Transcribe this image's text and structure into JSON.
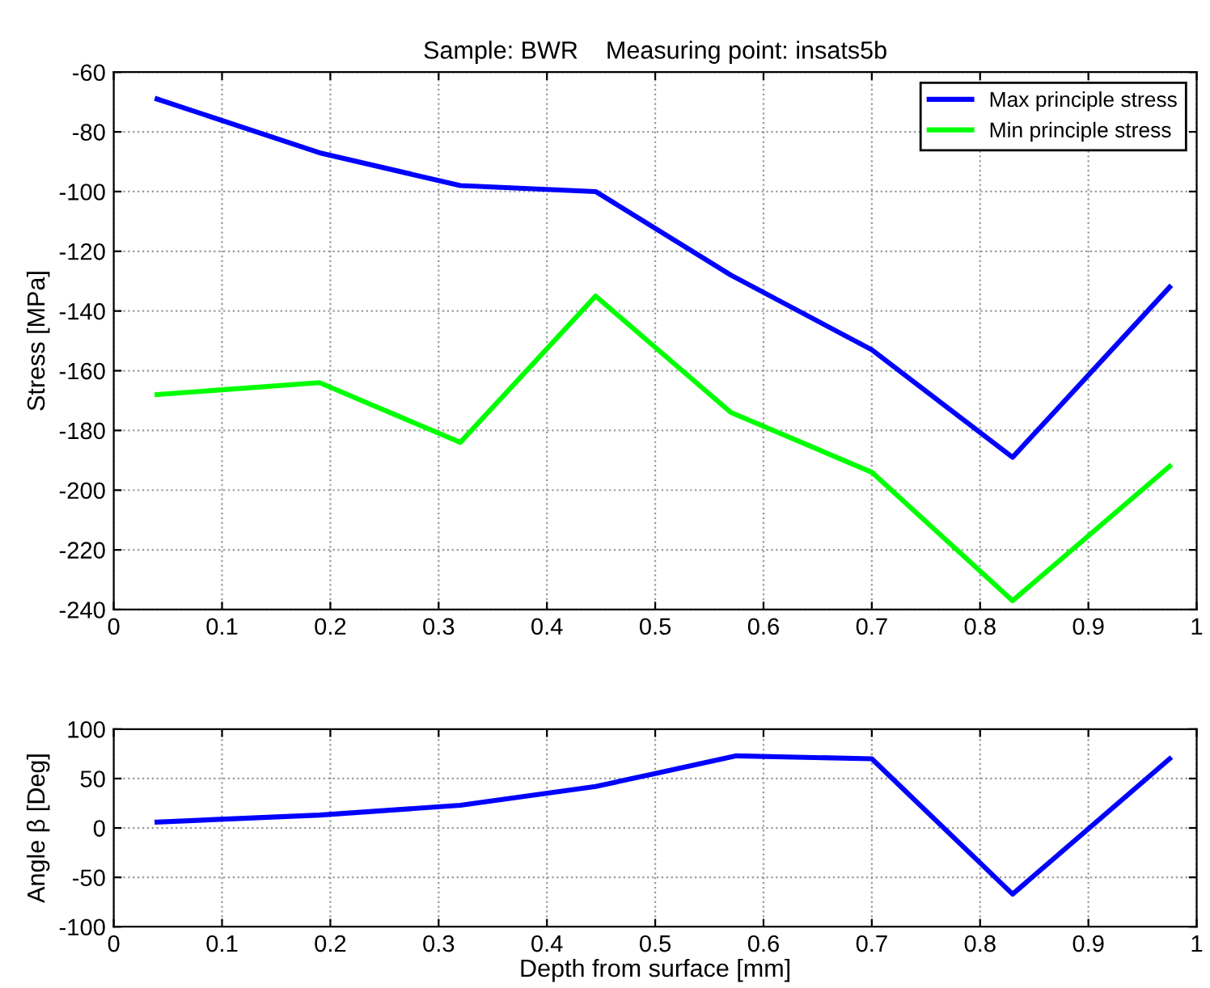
{
  "chart_data": [
    {
      "type": "line",
      "title": "Sample: BWR    Measuring point: insats5b",
      "ylabel": "Stress [MPa]",
      "x": [
        0.04,
        0.19,
        0.32,
        0.445,
        0.57,
        0.7,
        0.83,
        0.975
      ],
      "series": [
        {
          "name": "Max principle stress",
          "color": "#0000ff",
          "values": [
            -69,
            -87,
            -98,
            -100,
            -128,
            -153,
            -189,
            -132
          ]
        },
        {
          "name": "Min principle stress",
          "color": "#00ff00",
          "values": [
            -168,
            -164,
            -184,
            -135,
            -174,
            -194,
            -237,
            -192
          ]
        }
      ],
      "xlim": [
        0,
        1
      ],
      "xticks": [
        0,
        0.1,
        0.2,
        0.3,
        0.4,
        0.5,
        0.6,
        0.7,
        0.8,
        0.9,
        1
      ],
      "ylim": [
        -240,
        -60
      ],
      "yticks": [
        -240,
        -220,
        -200,
        -180,
        -160,
        -140,
        -120,
        -100,
        -80,
        -60
      ],
      "grid": true,
      "legend": "top right"
    },
    {
      "type": "line",
      "xlabel": "Depth from surface [mm]",
      "ylabel": "Angle β [Deg]",
      "x": [
        0.04,
        0.19,
        0.32,
        0.445,
        0.5,
        0.575,
        0.7,
        0.83,
        0.975
      ],
      "series": [
        {
          "color": "#0000ff",
          "values": [
            6,
            13,
            23,
            42,
            55,
            73,
            70,
            -67,
            70
          ]
        }
      ],
      "xlim": [
        0,
        1
      ],
      "xticks": [
        0,
        0.1,
        0.2,
        0.3,
        0.4,
        0.5,
        0.6,
        0.7,
        0.8,
        0.9,
        1
      ],
      "ylim": [
        -100,
        100
      ],
      "yticks": [
        -100,
        -50,
        0,
        50,
        100
      ],
      "grid": true
    }
  ]
}
